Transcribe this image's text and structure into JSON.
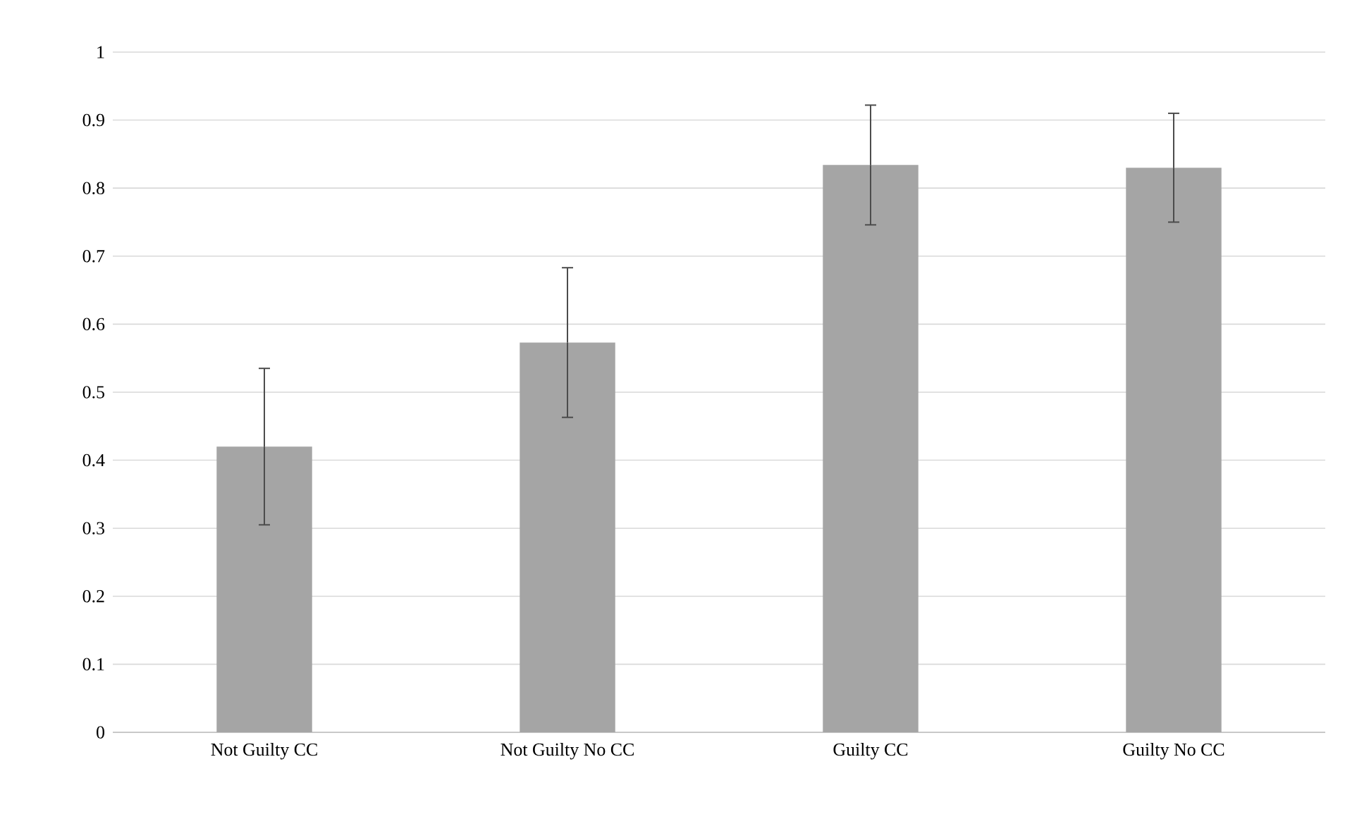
{
  "chart_data": {
    "type": "bar",
    "categories": [
      "Not Guilty CC",
      "Not Guilty No CC",
      "Guilty CC",
      "Guilty No CC"
    ],
    "values": [
      0.42,
      0.573,
      0.834,
      0.83
    ],
    "errors": [
      0.115,
      0.11,
      0.088,
      0.08
    ],
    "color": "#a5a5a5",
    "ylim": [
      0,
      1
    ],
    "yticks": [
      0,
      0.1,
      0.2,
      0.3,
      0.4,
      0.5,
      0.6,
      0.7,
      0.8,
      0.9,
      1
    ],
    "grid": "y"
  }
}
